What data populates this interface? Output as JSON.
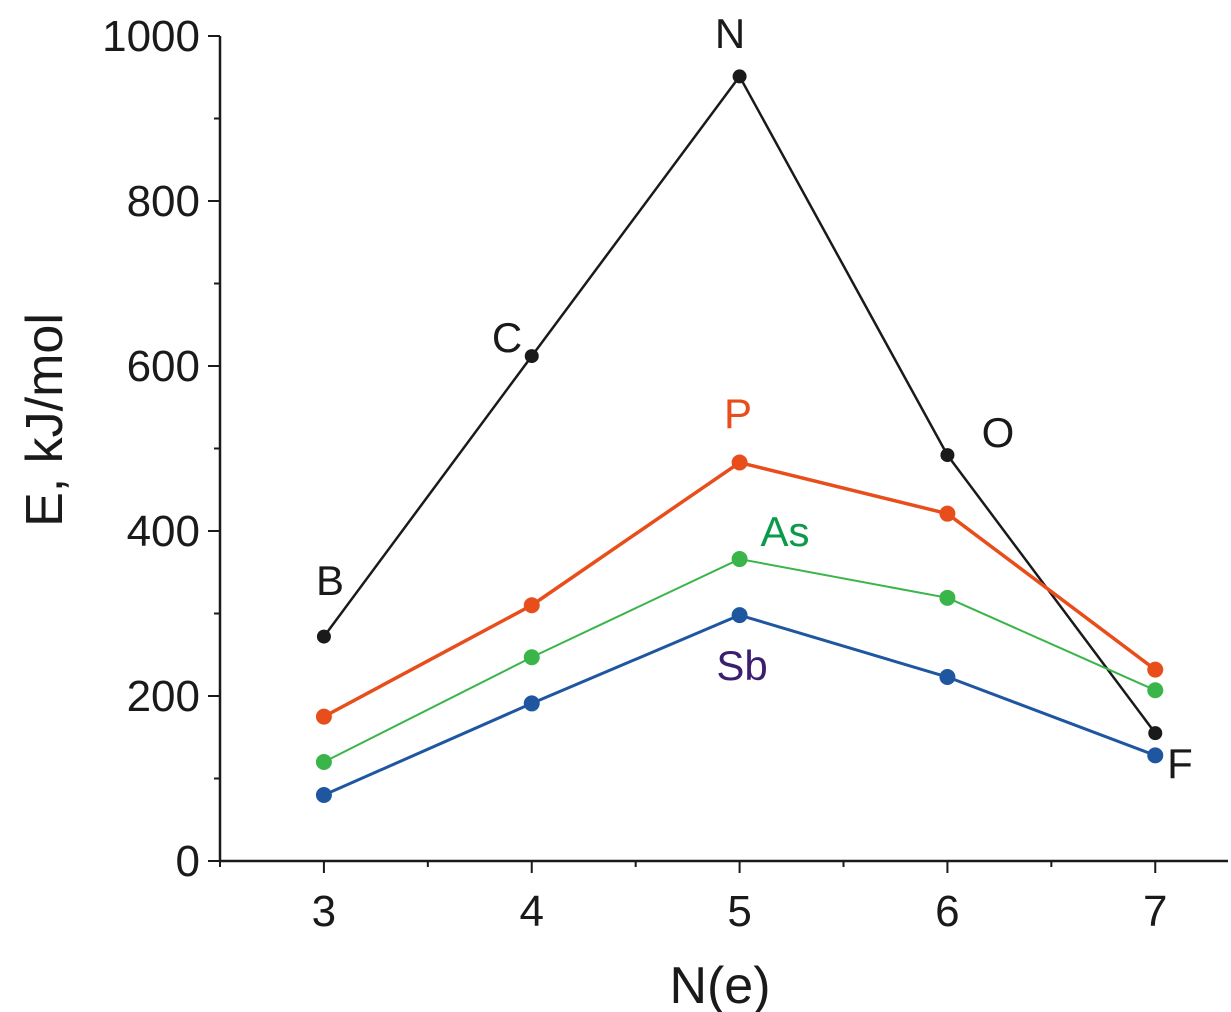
{
  "chart_data": {
    "type": "line",
    "title": "",
    "xlabel": "N(e)",
    "ylabel": "E, kJ/mol",
    "x": [
      3,
      4,
      5,
      6,
      7
    ],
    "xlim": [
      2.5,
      7.35
    ],
    "ylim": [
      0,
      1000
    ],
    "x_ticks": [
      "3",
      "4",
      "5",
      "6",
      "7"
    ],
    "y_ticks": [
      "0",
      "200",
      "400",
      "600",
      "800",
      "1000"
    ],
    "grid": false,
    "legend": "none",
    "series": [
      {
        "color": "#1a1a1a",
        "values": [
          272,
          612,
          951,
          492,
          155
        ]
      },
      {
        "color": "#e84e1b",
        "values": [
          175,
          310,
          483,
          421,
          232
        ]
      },
      {
        "color": "#3ab54a",
        "values": [
          120,
          247,
          366,
          319,
          207
        ]
      },
      {
        "color": "#1f56a0",
        "values": [
          80,
          191,
          298,
          223,
          128
        ]
      }
    ],
    "annotations": [
      {
        "text": "B",
        "color": "#1a1a1a"
      },
      {
        "text": "C",
        "color": "#1a1a1a"
      },
      {
        "text": "N",
        "color": "#1a1a1a"
      },
      {
        "text": "O",
        "color": "#1a1a1a"
      },
      {
        "text": "F",
        "color": "#1a1a1a"
      },
      {
        "text": "P",
        "color": "#e84e1b"
      },
      {
        "text": "As",
        "color": "#0a9a4a"
      },
      {
        "text": "Sb",
        "color": "#3b1e6e"
      }
    ]
  }
}
